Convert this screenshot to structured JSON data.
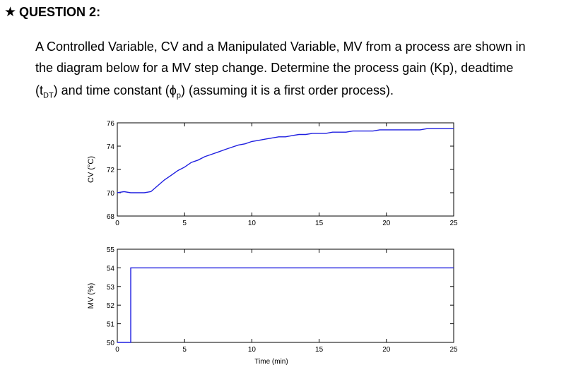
{
  "question": {
    "star_glyph": "★",
    "title": "QUESTION 2:",
    "line1": "A Controlled Variable, CV and a Manipulated Variable, MV from a process are shown in",
    "line2": "the diagram below for a MV step change. Determine the process gain (Kp), deadtime",
    "line3_a": "(t",
    "line3_sub": "DT",
    "line3_b": ") and time constant (ϕ",
    "line3_sub2": "p",
    "line3_c": ") (assuming it is a first order process)."
  },
  "chart_data": [
    {
      "type": "line",
      "ylabel": "CV (°C)",
      "xlabel": "",
      "xlim": [
        0,
        25
      ],
      "ylim": [
        68,
        76
      ],
      "xticks": [
        0,
        5,
        10,
        15,
        20,
        25
      ],
      "yticks": [
        68,
        70,
        72,
        74,
        76
      ],
      "grid": false,
      "color": "#1f1fe0",
      "series": [
        {
          "x": [
            0,
            0.5,
            1,
            1.5,
            2,
            2.5,
            3,
            3.5,
            4,
            4.5,
            5,
            5.5,
            6,
            6.5,
            7,
            7.5,
            8,
            8.5,
            9,
            9.5,
            10,
            10.5,
            11,
            11.5,
            12,
            12.5,
            13,
            13.5,
            14,
            14.5,
            15,
            15.5,
            16,
            16.5,
            17,
            17.5,
            18,
            18.5,
            19,
            19.5,
            20,
            20.5,
            21,
            21.5,
            22,
            22.5,
            23,
            23.5,
            24,
            24.5,
            25
          ],
          "y": [
            70.0,
            70.1,
            70.0,
            70.0,
            70.0,
            70.1,
            70.6,
            71.1,
            71.5,
            71.9,
            72.2,
            72.6,
            72.8,
            73.1,
            73.3,
            73.5,
            73.7,
            73.9,
            74.1,
            74.2,
            74.4,
            74.5,
            74.6,
            74.7,
            74.8,
            74.8,
            74.9,
            75.0,
            75.0,
            75.1,
            75.1,
            75.1,
            75.2,
            75.2,
            75.2,
            75.3,
            75.3,
            75.3,
            75.3,
            75.4,
            75.4,
            75.4,
            75.4,
            75.4,
            75.4,
            75.4,
            75.5,
            75.5,
            75.5,
            75.5,
            75.5
          ]
        }
      ]
    },
    {
      "type": "line",
      "ylabel": "MV (%)",
      "xlabel": "Time (min)",
      "xlim": [
        0,
        25
      ],
      "ylim": [
        50,
        55
      ],
      "xticks": [
        0,
        5,
        10,
        15,
        20,
        25
      ],
      "yticks": [
        50,
        51,
        52,
        53,
        54,
        55
      ],
      "grid": false,
      "color": "#1f1fe0",
      "series": [
        {
          "x": [
            0,
            1,
            1,
            25
          ],
          "y": [
            50,
            50,
            54,
            54
          ]
        }
      ]
    }
  ]
}
